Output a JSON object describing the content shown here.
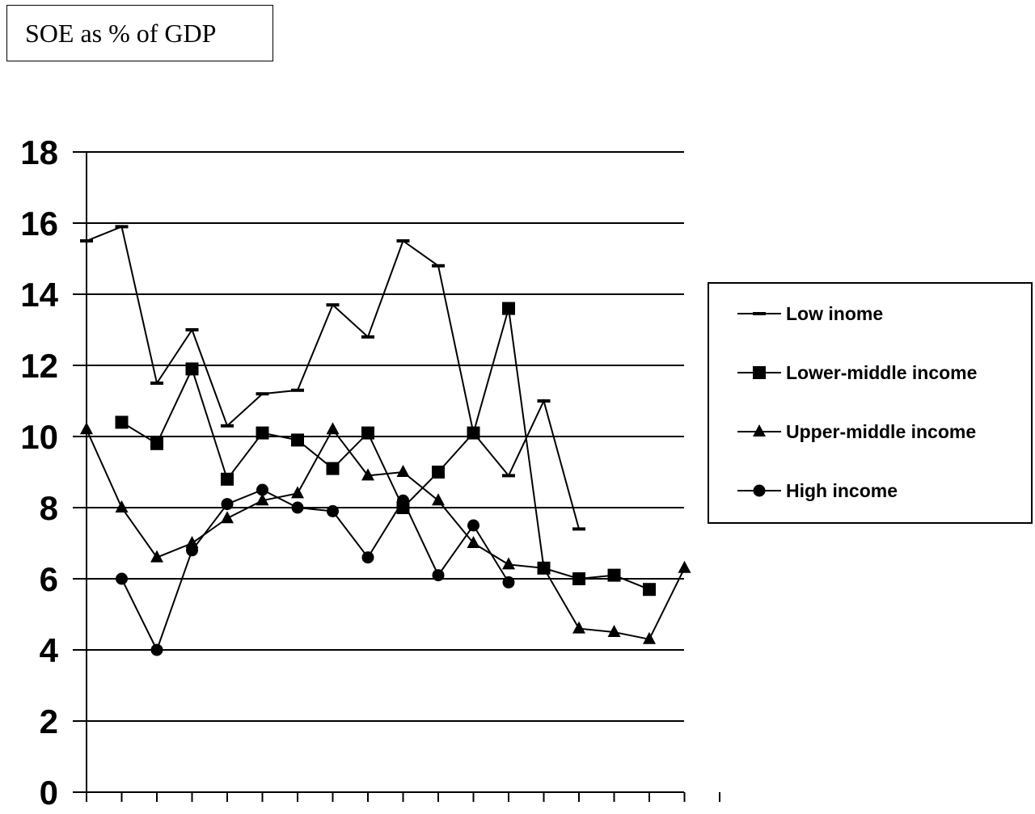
{
  "chart_data": {
    "type": "line",
    "title": "SOE as % of GDP",
    "xlabel": "",
    "ylabel": "",
    "ylim": [
      0,
      18
    ],
    "yticks": [
      0,
      2,
      4,
      6,
      8,
      10,
      12,
      14,
      16,
      18
    ],
    "x": [
      1,
      2,
      3,
      4,
      5,
      6,
      7,
      8,
      9,
      10,
      11,
      12,
      13,
      14,
      15,
      16,
      17,
      18
    ],
    "grid": true,
    "legend_position": "right",
    "series": [
      {
        "name": "Low inome",
        "marker": "dash",
        "values": [
          15.5,
          15.9,
          11.5,
          13.0,
          10.3,
          11.2,
          11.3,
          13.7,
          12.8,
          15.5,
          14.8,
          10.1,
          8.9,
          11.0,
          7.4,
          null,
          null,
          null
        ]
      },
      {
        "name": "Lower-middle income",
        "marker": "square",
        "values": [
          null,
          10.4,
          9.8,
          11.9,
          8.8,
          10.1,
          9.9,
          9.1,
          10.1,
          8.0,
          9.0,
          10.1,
          13.6,
          6.3,
          6.0,
          6.1,
          5.7,
          null
        ]
      },
      {
        "name": "Upper-middle income",
        "marker": "triangle",
        "values": [
          10.2,
          8.0,
          6.6,
          7.0,
          7.7,
          8.2,
          8.4,
          10.2,
          8.9,
          9.0,
          8.2,
          7.0,
          6.4,
          6.3,
          4.6,
          4.5,
          4.3,
          6.3
        ]
      },
      {
        "name": "High income",
        "marker": "circle",
        "values": [
          null,
          6.0,
          4.0,
          6.8,
          8.1,
          8.5,
          8.0,
          7.9,
          6.6,
          8.2,
          6.1,
          7.5,
          5.9,
          null,
          null,
          null,
          null,
          null
        ]
      }
    ]
  }
}
